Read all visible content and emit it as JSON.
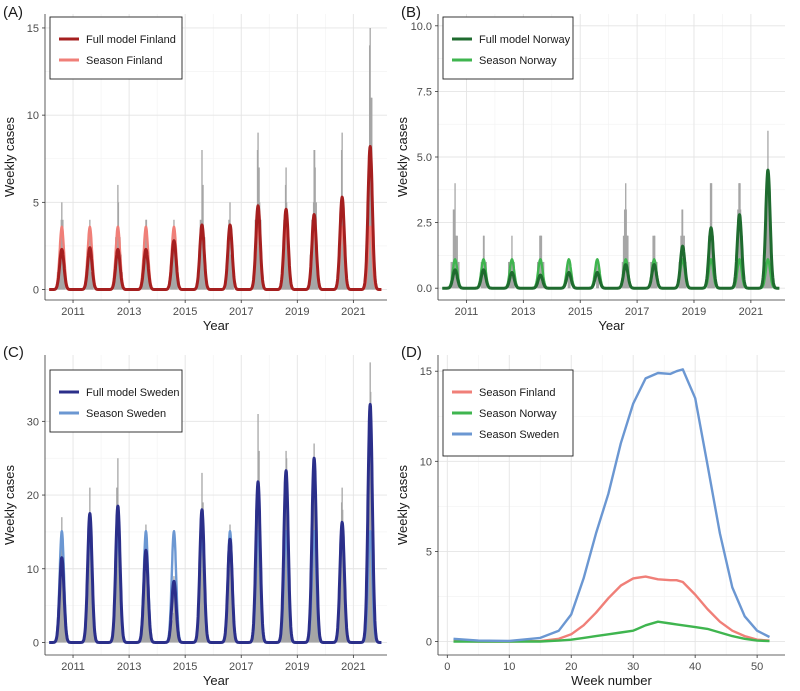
{
  "figure": {
    "panels_labels": [
      "(A)",
      "(B)",
      "(C)",
      "(D)"
    ]
  },
  "chart_data": [
    {
      "panel": "(A)",
      "type": "line",
      "xlabel": "Year",
      "ylabel": "Weekly cases",
      "xlim": [
        2010.0,
        2022.2
      ],
      "ylim": [
        -0.6,
        15.8
      ],
      "xticks": [
        2011,
        2013,
        2015,
        2017,
        2019,
        2021
      ],
      "yticks": [
        0,
        5,
        10,
        15
      ],
      "ytick_labels": [
        "0",
        "5",
        "10",
        "15"
      ],
      "season_amplitude": 3.6,
      "peak_offset": 0.6,
      "peak_width": 0.11,
      "peaks_full": [
        2.3,
        2.4,
        2.3,
        2.3,
        2.8,
        3.7,
        3.7,
        4.8,
        4.6,
        4.3,
        5.3,
        8.2
      ],
      "observed_peaks": [
        5,
        4,
        6,
        4,
        4,
        8,
        5,
        9,
        7,
        8,
        9,
        15
      ],
      "colors": {
        "full": "#a51f1f",
        "season": "#f07f78",
        "observed": "#a6a6a6"
      },
      "legend": [
        {
          "label": "Full model Finland",
          "color": "#a51f1f"
        },
        {
          "label": "Season Finland",
          "color": "#f07f78"
        }
      ]
    },
    {
      "panel": "(B)",
      "type": "line",
      "xlabel": "Year",
      "ylabel": "Weekly cases",
      "xlim": [
        2010.0,
        2022.2
      ],
      "ylim": [
        -0.45,
        10.45
      ],
      "xticks": [
        2011,
        2013,
        2015,
        2017,
        2019,
        2021
      ],
      "yticks": [
        0,
        2.5,
        5,
        7.5,
        10
      ],
      "ytick_labels": [
        "0.0",
        "2.5",
        "5.0",
        "7.5",
        "10.0"
      ],
      "season_amplitude": 1.1,
      "peak_offset": 0.6,
      "peak_width": 0.11,
      "peaks_full": [
        0.7,
        0.7,
        0.6,
        0.5,
        0.6,
        0.6,
        0.9,
        0.9,
        1.6,
        2.3,
        2.8,
        4.5
      ],
      "observed_peaks": [
        4,
        2,
        2,
        2,
        1,
        1,
        4,
        2,
        3,
        4,
        4,
        6
      ],
      "colors": {
        "full": "#1f6b2f",
        "season": "#3fb54f",
        "observed": "#a6a6a6"
      },
      "legend": [
        {
          "label": "Full model Norway",
          "color": "#1f6b2f"
        },
        {
          "label": "Season Norway",
          "color": "#3fb54f"
        }
      ]
    },
    {
      "panel": "(C)",
      "type": "line",
      "xlabel": "Year",
      "ylabel": "Weekly cases",
      "xlim": [
        2010.0,
        2022.2
      ],
      "ylim": [
        -1.7,
        39.0
      ],
      "xticks": [
        2011,
        2013,
        2015,
        2017,
        2019,
        2021
      ],
      "yticks": [
        0,
        10,
        20,
        30
      ],
      "ytick_labels": [
        "0",
        "10",
        "20",
        "30"
      ],
      "season_amplitude": 15.1,
      "peak_offset": 0.6,
      "peak_width": 0.11,
      "peaks_full": [
        11.5,
        17.5,
        18.5,
        12.5,
        8.3,
        18.0,
        14.0,
        21.8,
        23.3,
        25.0,
        16.3,
        32.3
      ],
      "observed_peaks": [
        17,
        21,
        25,
        16,
        9,
        23,
        16,
        31,
        26,
        27,
        21,
        38
      ],
      "colors": {
        "full": "#2b2f8a",
        "season": "#6b97d2",
        "observed": "#a6a6a6"
      },
      "legend": [
        {
          "label": "Full model Sweden",
          "color": "#2b2f8a"
        },
        {
          "label": "Season Sweden",
          "color": "#6b97d2"
        }
      ]
    },
    {
      "panel": "(D)",
      "type": "line",
      "xlabel": "Week number",
      "ylabel": "Weekly cases",
      "xlim": [
        -1.5,
        54.5
      ],
      "ylim": [
        -0.75,
        15.9
      ],
      "xticks": [
        0,
        10,
        20,
        30,
        40,
        50
      ],
      "yticks": [
        0,
        5,
        10,
        15
      ],
      "ytick_labels": [
        "0",
        "5",
        "10",
        "15"
      ],
      "x": [
        1,
        5,
        10,
        15,
        18,
        20,
        22,
        24,
        26,
        28,
        30,
        32,
        34,
        36,
        37,
        38,
        40,
        42,
        44,
        46,
        48,
        50,
        52
      ],
      "series": [
        {
          "name": "Season Finland",
          "color": "#f07f78",
          "values": [
            0.02,
            0.0,
            0.0,
            0.02,
            0.15,
            0.4,
            0.9,
            1.6,
            2.4,
            3.1,
            3.5,
            3.6,
            3.45,
            3.4,
            3.4,
            3.3,
            2.6,
            1.8,
            1.1,
            0.6,
            0.3,
            0.1,
            0.05
          ]
        },
        {
          "name": "Season Norway",
          "color": "#3fb54f",
          "values": [
            0.0,
            0.0,
            0.0,
            0.0,
            0.05,
            0.1,
            0.2,
            0.3,
            0.4,
            0.5,
            0.6,
            0.9,
            1.1,
            1.0,
            0.95,
            0.9,
            0.8,
            0.7,
            0.5,
            0.3,
            0.15,
            0.05,
            0.02
          ]
        },
        {
          "name": "Season Sweden",
          "color": "#6b97d2",
          "values": [
            0.15,
            0.05,
            0.03,
            0.2,
            0.6,
            1.5,
            3.5,
            6.0,
            8.2,
            11.0,
            13.2,
            14.6,
            14.9,
            14.85,
            15.0,
            15.1,
            13.5,
            9.8,
            6.0,
            3.0,
            1.4,
            0.6,
            0.25
          ]
        }
      ],
      "legend": [
        {
          "label": "Season Finland",
          "color": "#f07f78"
        },
        {
          "label": "Season Norway",
          "color": "#3fb54f"
        },
        {
          "label": "Season Sweden",
          "color": "#6b97d2"
        }
      ]
    }
  ]
}
